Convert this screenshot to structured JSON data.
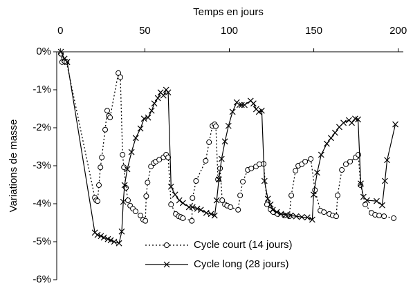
{
  "chart_data": {
    "type": "line",
    "xlabel": "Temps en jours",
    "ylabel": "Variations de masse",
    "x_axis_position": "top",
    "legend": "lower center",
    "grid": false,
    "xlim": [
      -3,
      203
    ],
    "xticks": [
      0,
      50,
      100,
      150,
      200
    ],
    "ylim": [
      -6,
      0
    ],
    "yticks": [
      {
        "value": 0,
        "label": "0%"
      },
      {
        "value": -1,
        "label": "-1%"
      },
      {
        "value": -2,
        "label": "-2%"
      },
      {
        "value": -3,
        "label": "-3%"
      },
      {
        "value": -4,
        "label": "-4%"
      },
      {
        "value": -5,
        "label": "-5%"
      },
      {
        "value": -6,
        "label": "-6%"
      }
    ],
    "series": [
      {
        "name": "Cycle court (14 jours)",
        "color": "#000000",
        "dash": true,
        "marker": "circle",
        "x": [
          0.3,
          1,
          2.3,
          3.6,
          20.4,
          21.2,
          22,
          22.8,
          23.7,
          24.5,
          26.5,
          27.7,
          28.6,
          29.4,
          34.3,
          35.5,
          36.8,
          37.6,
          38.8,
          40,
          41.3,
          42.9,
          44.5,
          47.4,
          49,
          50.3,
          50.8,
          51.6,
          53.6,
          55.2,
          56.5,
          58.5,
          61,
          62.6,
          63.8,
          65.5,
          68.3,
          70,
          71.3,
          72.5,
          77.8,
          78.2,
          80.3,
          86,
          88,
          90,
          91.3,
          92,
          93.3,
          94.5,
          95.8,
          97.4,
          98.7,
          100.7,
          105.2,
          106.4,
          108,
          110.9,
          113,
          115.8,
          117.8,
          120.3,
          122.3,
          124.4,
          126,
          128.5,
          132.6,
          135.5,
          136.7,
          139.2,
          140.8,
          142.9,
          144.9,
          148.2,
          150.7,
          153.9,
          156,
          159.2,
          161.2,
          163.3,
          164.1,
          166.6,
          169,
          171.5,
          174.8,
          176.4,
          177.7,
          180.5,
          184.2,
          186.3,
          188.7,
          191.6,
          197.3
        ],
        "values": [
          -0.05,
          -0.27,
          -0.24,
          -0.27,
          -3.84,
          -3.91,
          -3.93,
          -3.51,
          -3.04,
          -2.78,
          -2.05,
          -1.55,
          -1.69,
          -1.73,
          -0.56,
          -0.67,
          -2.71,
          -3.04,
          -3.58,
          -3.91,
          -4.05,
          -4.13,
          -4.2,
          -4.31,
          -4.42,
          -4.45,
          -3.8,
          -3.44,
          -3.02,
          -2.93,
          -2.89,
          -2.84,
          -2.78,
          -2.71,
          -2.78,
          -4.02,
          -4.27,
          -4.33,
          -4.35,
          -4.38,
          -4.45,
          -3.85,
          -3.4,
          -2.87,
          -2.38,
          -1.95,
          -1.91,
          -1.96,
          -3.36,
          -3.07,
          -3.91,
          -4.02,
          -4.05,
          -4.09,
          -4.16,
          -3.78,
          -3.42,
          -3.11,
          -3.07,
          -3.02,
          -2.96,
          -2.95,
          -4.02,
          -4.15,
          -4.22,
          -4.27,
          -4.31,
          -4.33,
          -3.78,
          -3.13,
          -3,
          -2.96,
          -2.89,
          -2.82,
          -3.64,
          -4.18,
          -4.22,
          -4.27,
          -4.31,
          -4.33,
          -3.78,
          -3.11,
          -2.96,
          -2.89,
          -2.78,
          -2.71,
          -3.51,
          -4.02,
          -4.24,
          -4.29,
          -4.31,
          -4.33,
          -4.38
        ]
      },
      {
        "name": "Cycle long (28 jours)",
        "color": "#000000",
        "dash": false,
        "marker": "cross",
        "x": [
          0.3,
          2.4,
          4,
          20.4,
          22,
          24,
          25.7,
          28.1,
          29.8,
          31.8,
          34.7,
          36.3,
          37.2,
          38,
          39.6,
          42.1,
          44.6,
          47.4,
          49.5,
          51.9,
          54,
          55.6,
          57.7,
          59.3,
          61,
          62.6,
          63.8,
          65.5,
          67.9,
          70.4,
          72.5,
          76.1,
          78.2,
          81,
          83.1,
          86.4,
          89.2,
          91.3,
          92.5,
          93.8,
          95.4,
          97.4,
          99.5,
          101.9,
          104.4,
          106,
          107.3,
          109,
          112.6,
          114.3,
          115.9,
          117.5,
          119.2,
          120.8,
          122.8,
          124.4,
          125.7,
          128.1,
          130.6,
          133.5,
          136.3,
          139.6,
          142.9,
          146.2,
          149.1,
          149.9,
          152,
          154.4,
          157.7,
          160.2,
          162.6,
          165.1,
          167.6,
          170.8,
          172.5,
          174.5,
          176.2,
          177.8,
          179.4,
          181.5,
          187.2,
          190.5,
          192.1,
          193.4,
          198.3
        ],
        "values": [
          0,
          -0.18,
          -0.27,
          -4.76,
          -4.82,
          -4.85,
          -4.89,
          -4.93,
          -4.96,
          -5,
          -5.04,
          -4.73,
          -3.95,
          -3.51,
          -3.09,
          -2.64,
          -2.27,
          -2.02,
          -1.76,
          -1.73,
          -1.55,
          -1.36,
          -1.22,
          -1.07,
          -1.15,
          -1,
          -1.07,
          -3.55,
          -3.76,
          -3.91,
          -3.98,
          -4.09,
          -4.09,
          -4.13,
          -4.16,
          -4.24,
          -4.27,
          -4.31,
          -3.91,
          -3.36,
          -2.82,
          -2.36,
          -1.95,
          -1.58,
          -1.33,
          -1.4,
          -1.4,
          -1.4,
          -1.29,
          -1.36,
          -1.51,
          -1.58,
          -1.55,
          -3.4,
          -3.87,
          -4.02,
          -4.16,
          -4.22,
          -4.27,
          -4.29,
          -4.31,
          -4.33,
          -4.35,
          -4.36,
          -4.42,
          -3.76,
          -3.18,
          -2.71,
          -2.42,
          -2.27,
          -2.13,
          -1.98,
          -1.87,
          -1.8,
          -1.87,
          -1.76,
          -1.78,
          -3.47,
          -3.82,
          -3.91,
          -3.93,
          -4.04,
          -3.4,
          -2.85,
          -1.91
        ]
      }
    ]
  }
}
